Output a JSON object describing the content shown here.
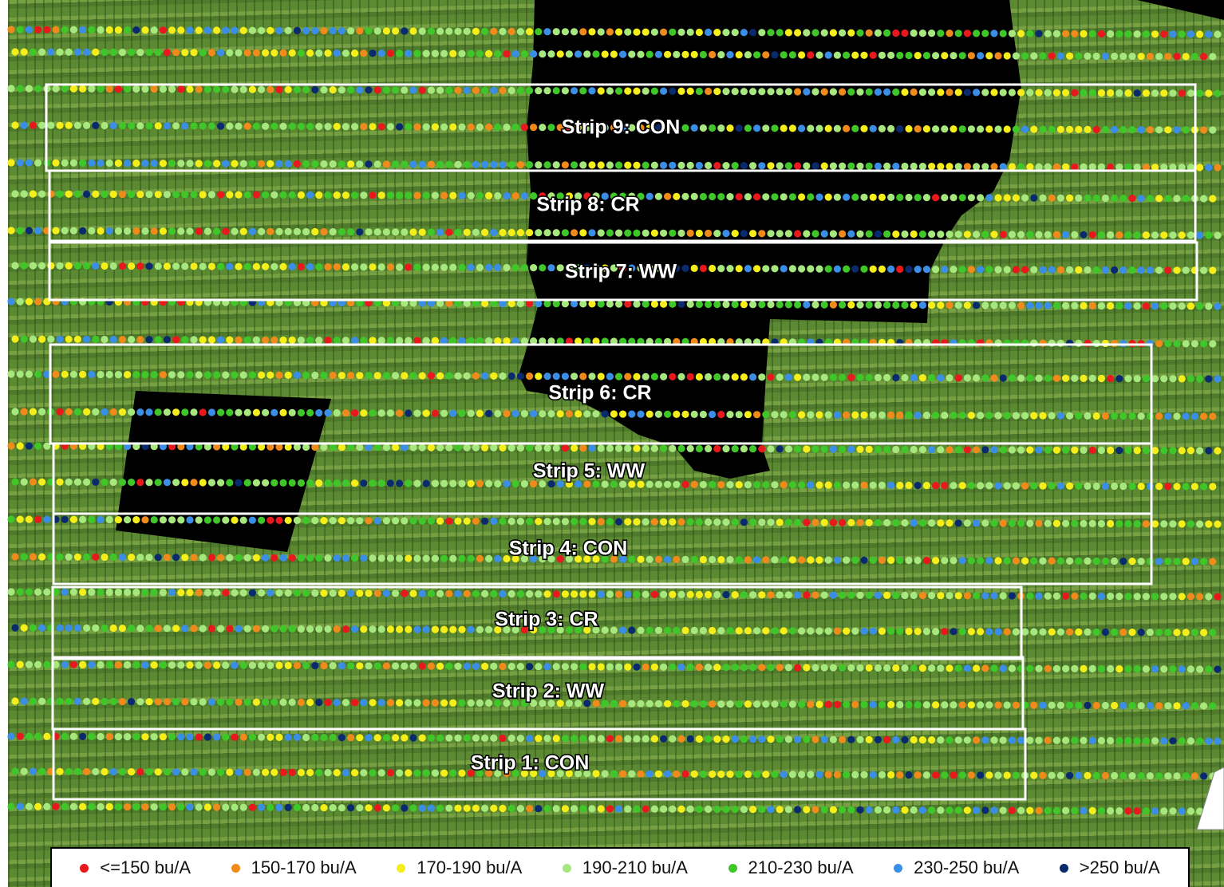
{
  "map": {
    "strips": [
      {
        "label": "Strip 9: CON"
      },
      {
        "label": "Strip 8: CR"
      },
      {
        "label": "Strip 7: WW"
      },
      {
        "label": "Strip 6: CR"
      },
      {
        "label": "Strip 5: WW"
      },
      {
        "label": "Strip 4: CON"
      },
      {
        "label": "Strip 3: CR"
      },
      {
        "label": "Strip 2: WW"
      },
      {
        "label": "Strip 1: CON"
      }
    ],
    "legend": [
      {
        "label": "<=150 bu/A",
        "color": "#e8181c"
      },
      {
        "label": "150-170 bu/A",
        "color": "#f08a1a"
      },
      {
        "label": "170-190 bu/A",
        "color": "#f6ee1a"
      },
      {
        "label": "190-210 bu/A",
        "color": "#a6e87e"
      },
      {
        "label": "210-230 bu/A",
        "color": "#3fc72a"
      },
      {
        "label": "230-250 bu/A",
        "color": "#3a8ee6"
      },
      {
        "label": ">250 bu/A",
        "color": "#0a2a6e"
      }
    ],
    "colors": {
      "field": "#5c8a33",
      "no_data_mask": "#000000",
      "strip_outline": "#ffffff"
    }
  }
}
